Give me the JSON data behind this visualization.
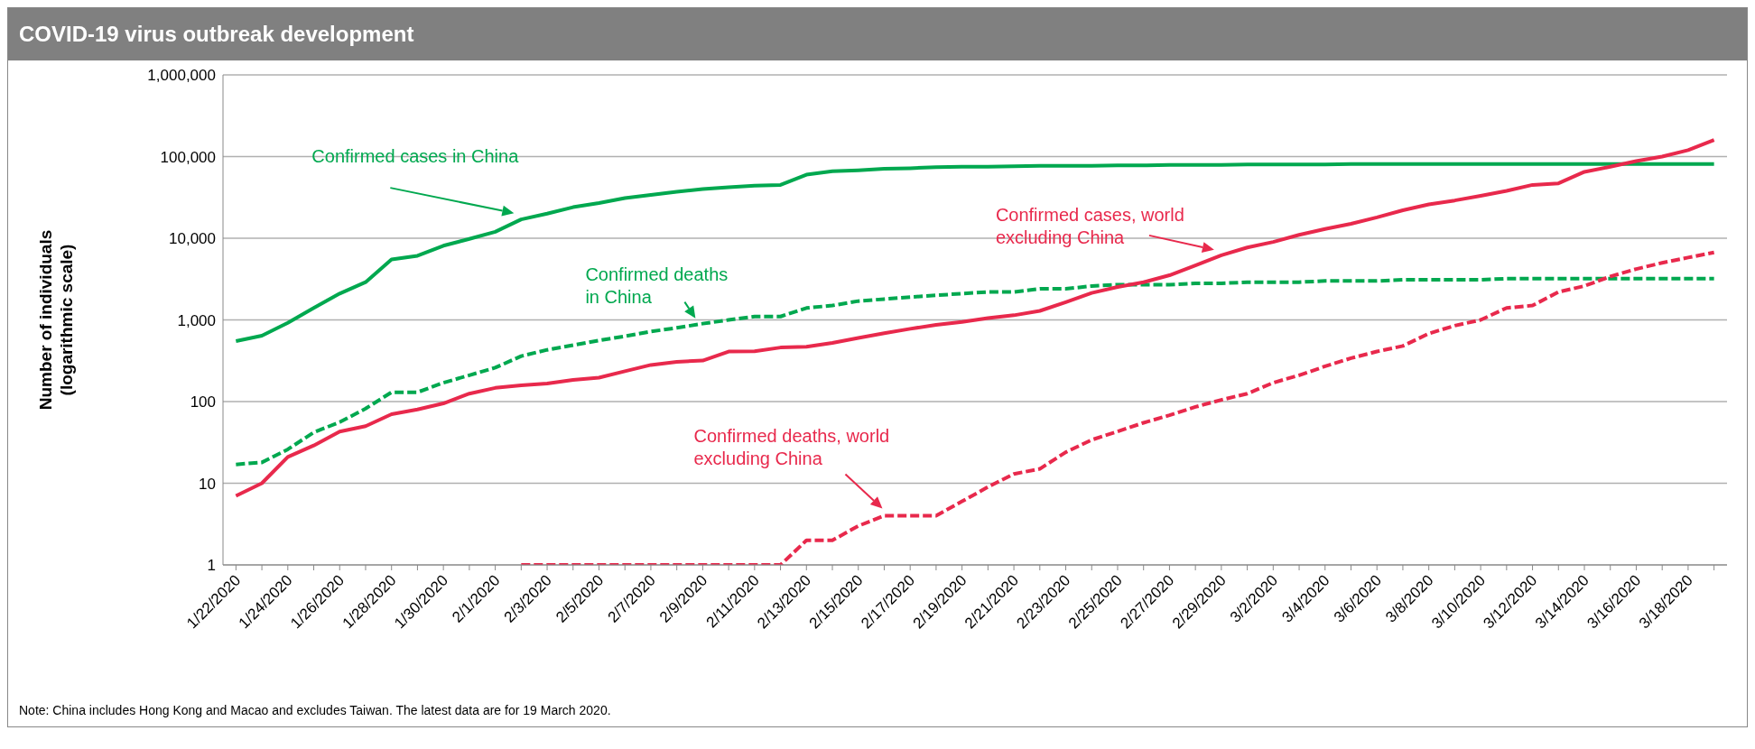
{
  "chart_data": {
    "type": "line",
    "title": "COVID-19 virus outbreak development",
    "ylabel": "Number of individuals (logarithmic scale)",
    "categories": [
      "1/22/2020",
      null,
      "1/24/2020",
      null,
      "1/26/2020",
      null,
      "1/28/2020",
      null,
      "1/30/2020",
      null,
      "2/1/2020",
      null,
      "2/3/2020",
      null,
      "2/5/2020",
      null,
      "2/7/2020",
      null,
      "2/9/2020",
      null,
      "2/11/2020",
      null,
      "2/13/2020",
      null,
      "2/15/2020",
      null,
      "2/17/2020",
      null,
      "2/19/2020",
      null,
      "2/21/2020",
      null,
      "2/23/2020",
      null,
      "2/25/2020",
      null,
      "2/27/2020",
      null,
      "2/29/2020",
      null,
      "3/2/2020",
      null,
      "3/4/2020",
      null,
      "3/6/2020",
      null,
      "3/8/2020",
      null,
      "3/10/2020",
      null,
      "3/12/2020",
      null,
      "3/14/2020",
      null,
      "3/16/2020",
      null,
      "3/18/2020",
      null
    ],
    "series": [
      {
        "name": "Confirmed cases in China",
        "color": "#00a84f",
        "line_style": "solid",
        "values": [
          550,
          640,
          920,
          1400,
          2100,
          2900,
          5500,
          6100,
          8100,
          9800,
          12000,
          17000,
          20000,
          24000,
          27000,
          31000,
          34000,
          37000,
          40000,
          42000,
          44000,
          45000,
          60000,
          66000,
          68000,
          71000,
          72000,
          74000,
          75000,
          75000,
          76000,
          77000,
          77000,
          77000,
          78000,
          78000,
          79000,
          79000,
          79000,
          80000,
          80000,
          80000,
          80000,
          81000,
          81000,
          81000,
          81000,
          81000,
          81000,
          81000,
          81000,
          81000,
          81000,
          81000,
          81000,
          81000,
          81000,
          81000
        ]
      },
      {
        "name": "Confirmed deaths in China",
        "color": "#00a84f",
        "line_style": "dashed",
        "values": [
          17,
          18,
          26,
          42,
          56,
          82,
          130,
          130,
          170,
          210,
          260,
          360,
          430,
          490,
          560,
          630,
          720,
          800,
          900,
          1000,
          1100,
          1100,
          1400,
          1500,
          1700,
          1800,
          1900,
          2000,
          2100,
          2200,
          2200,
          2400,
          2400,
          2600,
          2700,
          2700,
          2700,
          2800,
          2800,
          2900,
          2900,
          2900,
          3000,
          3000,
          3000,
          3100,
          3100,
          3100,
          3100,
          3200,
          3200,
          3200,
          3200,
          3200,
          3200,
          3200,
          3200,
          3200
        ]
      },
      {
        "name": "Confirmed cases, world excluding China",
        "color": "#e8294c",
        "line_style": "solid",
        "values": [
          7,
          10,
          21,
          29,
          43,
          50,
          70,
          80,
          95,
          125,
          147,
          158,
          166,
          184,
          196,
          235,
          281,
          307,
          318,
          410,
          413,
          459,
          468,
          523,
          602,
          687,
          778,
          869,
          945,
          1050,
          1140,
          1290,
          1650,
          2140,
          2530,
          2890,
          3520,
          4660,
          6190,
          7700,
          9000,
          11000,
          13000,
          15000,
          18000,
          22000,
          26000,
          29000,
          33000,
          38000,
          45000,
          47000,
          65000,
          75000,
          88000,
          100000,
          120000,
          160000
        ]
      },
      {
        "name": "Confirmed deaths, world excluding China",
        "color": "#e8294c",
        "line_style": "dashed",
        "values": [
          null,
          null,
          null,
          null,
          null,
          null,
          null,
          null,
          null,
          null,
          null,
          1,
          1,
          1,
          1,
          1,
          1,
          1,
          1,
          1,
          1,
          1,
          2,
          2,
          3,
          4,
          4,
          4,
          6,
          9,
          13,
          15,
          24,
          34,
          43,
          55,
          68,
          86,
          105,
          125,
          170,
          210,
          270,
          340,
          410,
          480,
          680,
          850,
          1000,
          1400,
          1500,
          2200,
          2600,
          3400,
          4200,
          5000,
          5800,
          6700
        ]
      }
    ],
    "log": "y",
    "ylim": [
      1,
      1000000
    ],
    "yticks": [
      1,
      10,
      100,
      {
        "value": 1000,
        "label": "1,000"
      },
      {
        "value": 10000,
        "label": "10,000"
      },
      {
        "value": 100000,
        "label": "100,000"
      },
      {
        "value": 1000000,
        "label": "1,000,000"
      }
    ],
    "grid": "y",
    "legend": false,
    "marker": "none",
    "annotations": [
      "Note: China includes Hong Kong and Macao and excludes Taiwan. The latest data are for 19 March 2020."
    ]
  }
}
